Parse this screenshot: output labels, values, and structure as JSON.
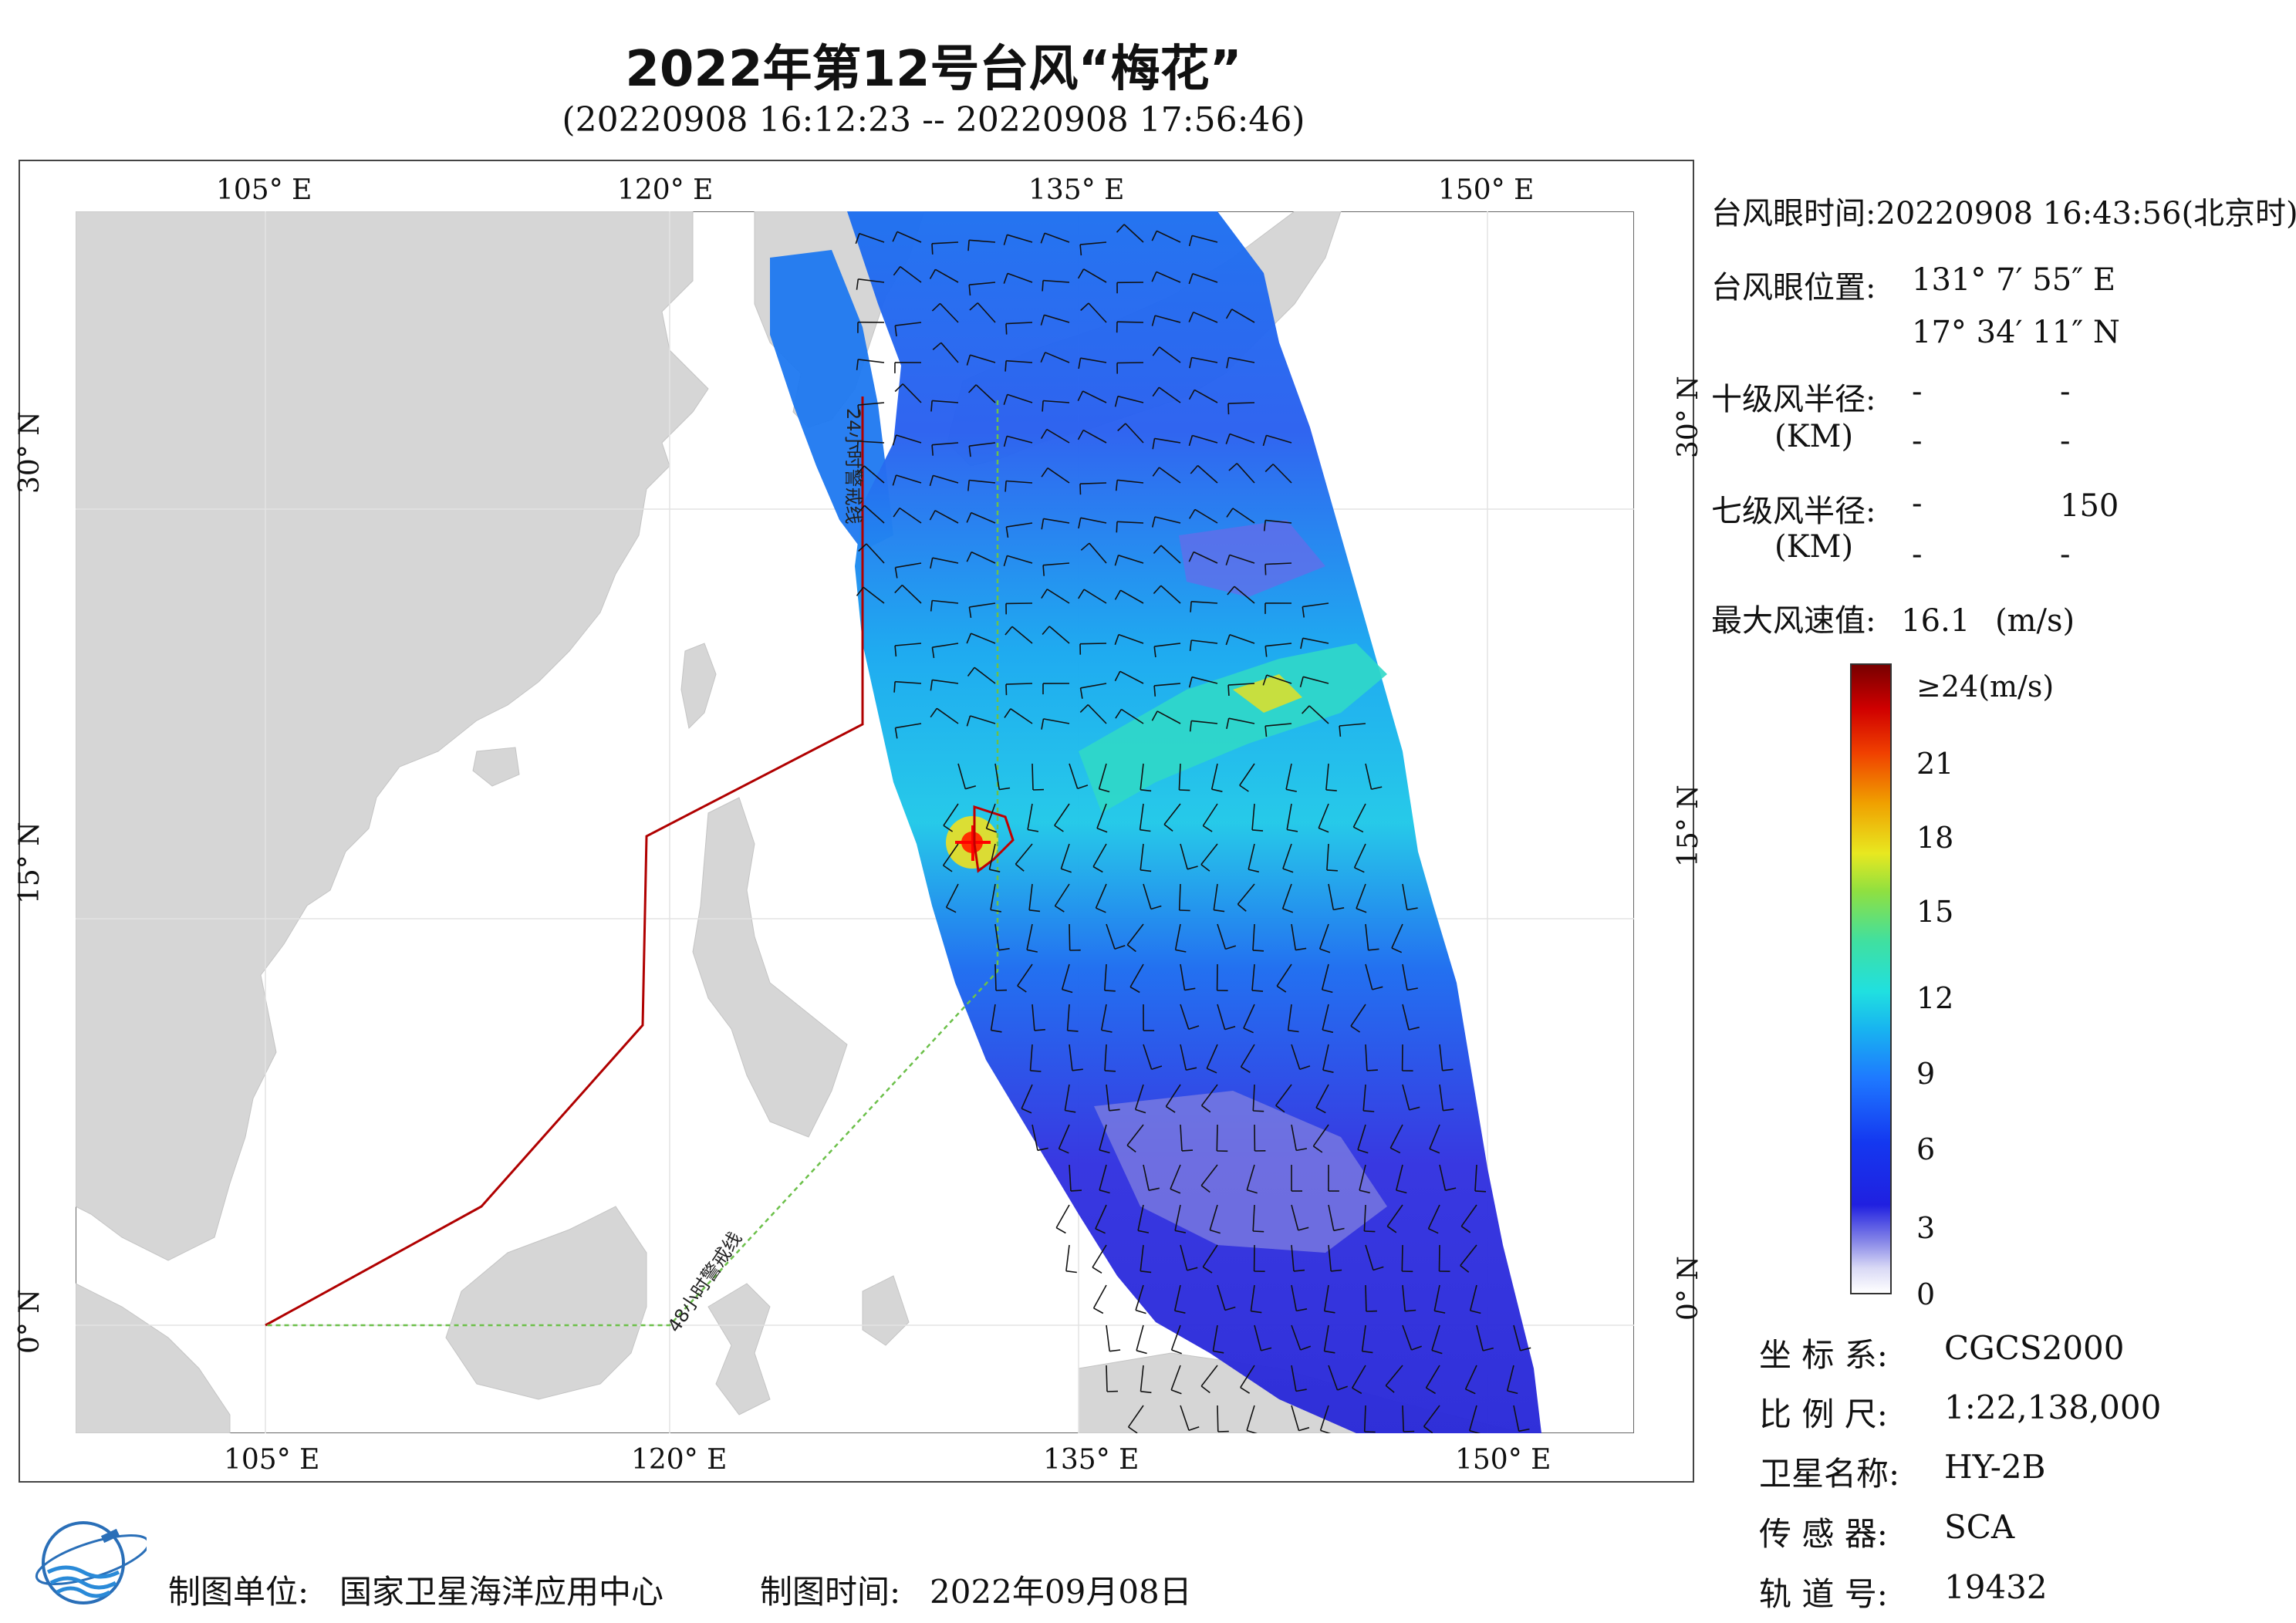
{
  "header": {
    "title": "2022年第12号台风“梅花”",
    "time_range": "(20220908 16:12:23 -- 20220908 17:56:46)"
  },
  "map": {
    "lon_labels_top": [
      "105° E",
      "120° E",
      "135° E",
      "150° E"
    ],
    "lon_labels_bottom": [
      "105° E",
      "120° E",
      "135° E",
      "150° E"
    ],
    "lat_labels_left": [
      "30° N",
      "15° N",
      "0° N"
    ],
    "lat_labels_right": [
      "30° N",
      "15° N",
      "0° N"
    ],
    "line_24h": "24小时警戒线",
    "line_48h": "48小时警戒线",
    "colors": {
      "land": "#d6d6d6",
      "sea": "#ffffff",
      "warning_24h": "#b00000",
      "warning_48h": "#6cc04a",
      "eye_marker": "#ff0000"
    }
  },
  "info": {
    "eye_time_label": "台风眼时间:",
    "eye_time_value": "20220908 16:43:56(北京时)",
    "eye_pos_label": "台风眼位置:",
    "eye_lon": "131° 7′ 55″ E",
    "eye_lat": "17° 34′ 11″ N",
    "r10_label": "十级风半径:",
    "r10_unit": "(KM)",
    "r10_values": [
      "-",
      "-",
      "-",
      "-"
    ],
    "r7_label": "七级风半径:",
    "r7_unit": "(KM)",
    "r7_values": [
      "-",
      "150",
      "-",
      "-"
    ],
    "max_wind_label": "最大风速值:",
    "max_wind_value": "16.1",
    "max_wind_unit": "(m/s)"
  },
  "legend": {
    "top_label": "≥24(m/s)",
    "ticks": [
      "21",
      "18",
      "15",
      "12",
      "9",
      "6",
      "3",
      "0"
    ]
  },
  "meta": {
    "crs_label": "坐 标 系:",
    "crs_value": "CGCS2000",
    "scale_label": "比 例 尺:",
    "scale_value": "1:22,138,000",
    "satellite_label": "卫星名称:",
    "satellite_value": "HY-2B",
    "sensor_label": "传 感 器:",
    "sensor_value": "SCA",
    "orbit_label": "轨 道 号:",
    "orbit_value": "19432"
  },
  "footer": {
    "maker_label": "制图单位:",
    "maker_value": "国家卫星海洋应用中心",
    "date_label": "制图时间:",
    "date_value": "2022年09月08日"
  }
}
